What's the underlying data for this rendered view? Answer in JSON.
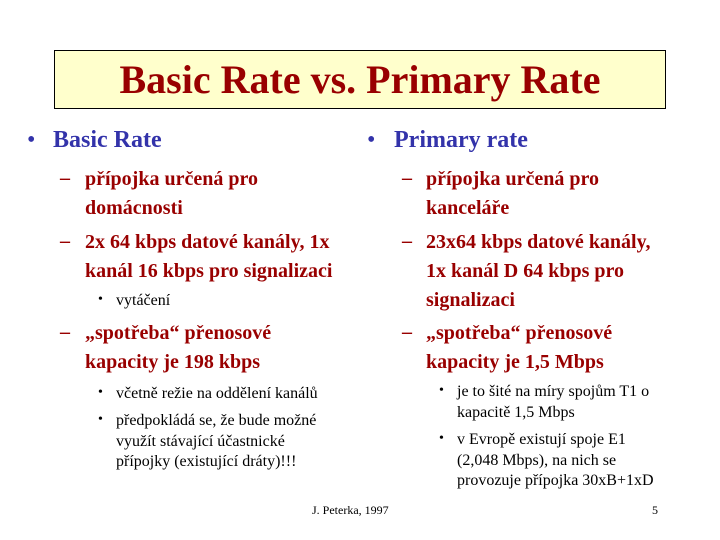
{
  "title": "Basic Rate vs. Primary Rate",
  "left": {
    "heading": "Basic Rate",
    "items": [
      {
        "lines": [
          "přípojka určená pro",
          "domácnosti"
        ]
      },
      {
        "lines": [
          "2x 64 kbps datové kanály, 1x",
          "kanál 16 kbps pro signalizaci"
        ]
      },
      {
        "lines": [
          "vytáčení"
        ]
      },
      {
        "lines": [
          "„spotřeba“ přenosové",
          "kapacity je 198 kbps"
        ]
      },
      {
        "lines": [
          "včetně režie na oddělení kanálů"
        ]
      },
      {
        "lines": [
          "předpokládá se, že bude možné",
          "využít stávající účastnické",
          "přípojky (existující dráty)!!!"
        ]
      }
    ]
  },
  "right": {
    "heading": "Primary rate",
    "items": [
      {
        "lines": [
          "přípojka určená pro",
          "kanceláře"
        ]
      },
      {
        "lines": [
          "23x64 kbps datové kanály,",
          "1x kanál D 64 kbps pro",
          "signalizaci"
        ]
      },
      {
        "lines": [
          "„spotřeba“ přenosové",
          "kapacity je 1,5 Mbps"
        ]
      },
      {
        "lines": [
          "je to šité na míry spojům T1 o",
          "kapacitě 1,5 Mbps"
        ]
      },
      {
        "lines": [
          "v Evropě existují spoje E1",
          "(2,048 Mbps), na nich se",
          "provozuje přípojka 30xB+1xD"
        ]
      }
    ]
  },
  "footer": {
    "author": "J. Peterka, 1997",
    "page": "5"
  }
}
